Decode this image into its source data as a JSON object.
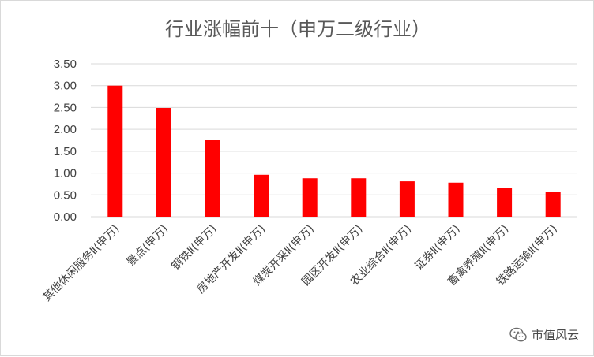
{
  "chart_data": {
    "type": "bar",
    "title": "行业涨幅前十（申万二级行业）",
    "categories": [
      "其他休闲服务Ⅱ(申万)",
      "景点(申万)",
      "钢铁Ⅱ(申万)",
      "房地产开发Ⅱ(申万)",
      "煤炭开采Ⅱ(申万)",
      "园区开发Ⅱ(申万)",
      "农业综合Ⅱ(申万)",
      "证券Ⅱ(申万)",
      "畜禽养殖Ⅱ(申万)",
      "铁路运输Ⅱ(申万)"
    ],
    "values": [
      3.0,
      2.49,
      1.75,
      0.96,
      0.88,
      0.88,
      0.81,
      0.78,
      0.66,
      0.56
    ],
    "yticks": [
      "0.00",
      "0.50",
      "1.00",
      "1.50",
      "2.00",
      "2.50",
      "3.00",
      "3.50"
    ],
    "ylim": [
      0,
      3.5
    ],
    "bar_color": "#ff0000",
    "grid": true,
    "legend": "none"
  },
  "watermark": {
    "icon": "wechat-icon",
    "text": "市值风云"
  }
}
